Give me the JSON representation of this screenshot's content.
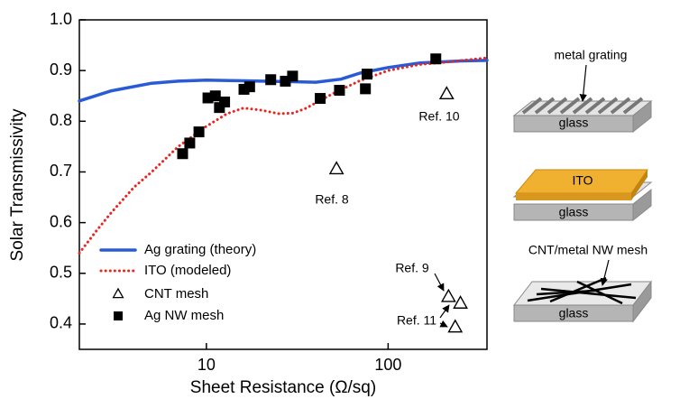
{
  "chart_data": {
    "type": "scatter-line",
    "x_label": "Sheet Resistance (Ω/sq)",
    "y_label": "Solar Transmissivity",
    "xscale": "log",
    "xlim": [
      2,
      350
    ],
    "ylim": [
      0.35,
      1.0
    ],
    "xticks": [
      10,
      100
    ],
    "yticks": [
      0.4,
      0.5,
      0.6,
      0.7,
      0.8,
      0.9,
      {
        "value": 1.0,
        "label": "1.0"
      }
    ],
    "legend": "lower left",
    "series": [
      {
        "name": "Ag grating (theory)",
        "style": "solid",
        "color": "#2a5bd7",
        "x": [
          2,
          3,
          5,
          7,
          10,
          15,
          20,
          30,
          40,
          55,
          70,
          100,
          150,
          250,
          350
        ],
        "values": [
          0.84,
          0.86,
          0.875,
          0.879,
          0.881,
          0.88,
          0.879,
          0.878,
          0.877,
          0.883,
          0.895,
          0.906,
          0.915,
          0.919,
          0.92
        ]
      },
      {
        "name": "ITO (modeled)",
        "style": "dotted",
        "color": "#e8251f",
        "x": [
          2,
          2.5,
          3,
          4,
          5,
          7,
          10,
          13,
          16,
          20,
          25,
          30,
          35,
          50,
          70,
          100,
          150,
          200,
          350
        ],
        "values": [
          0.54,
          0.585,
          0.62,
          0.67,
          0.7,
          0.75,
          0.79,
          0.815,
          0.826,
          0.822,
          0.815,
          0.816,
          0.825,
          0.855,
          0.88,
          0.9,
          0.912,
          0.916,
          0.925
        ]
      },
      {
        "name": "CNT mesh",
        "marker": "open-triangle",
        "color": "#000000",
        "x": [
          52,
          210,
          215,
          250,
          234
        ],
        "values": [
          0.705,
          0.853,
          0.453,
          0.44,
          0.393
        ]
      },
      {
        "name": "Ag NW mesh",
        "marker": "filled-square",
        "color": "#000000",
        "x": [
          7.4,
          8.1,
          9.1,
          10.2,
          11.2,
          11.8,
          12.6,
          16.1,
          17.3,
          22.6,
          27.2,
          29.8,
          42.3,
          54,
          75,
          76.6,
          183
        ],
        "values": [
          0.736,
          0.757,
          0.779,
          0.846,
          0.85,
          0.827,
          0.838,
          0.863,
          0.868,
          0.882,
          0.879,
          0.889,
          0.845,
          0.861,
          0.864,
          0.893,
          0.923
        ]
      }
    ],
    "annotations": [
      "Ref. 10",
      "Ref. 8",
      "Ref. 9",
      "Ref. 11"
    ]
  },
  "diagram": {
    "panels": [
      {
        "label": "metal grating",
        "substrate": "glass"
      },
      {
        "label": "ITO",
        "substrate": "glass"
      },
      {
        "label": "CNT/metal NW mesh",
        "substrate": "glass"
      }
    ]
  }
}
